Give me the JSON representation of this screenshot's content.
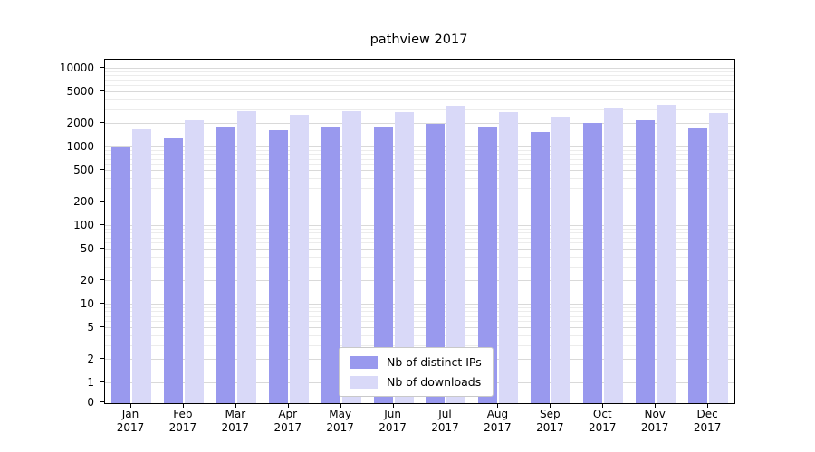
{
  "chart_data": {
    "type": "bar",
    "title": "pathview 2017",
    "categories": [
      "Jan",
      "Feb",
      "Mar",
      "Apr",
      "May",
      "Jun",
      "Jul",
      "Aug",
      "Sep",
      "Oct",
      "Nov",
      "Dec"
    ],
    "year_label": "2017",
    "series": [
      {
        "name": "Nb of distinct IPs",
        "color": "#9999ee",
        "values": [
          1000,
          1300,
          1850,
          1650,
          1850,
          1800,
          2000,
          1800,
          1550,
          2050,
          2200,
          1750
        ]
      },
      {
        "name": "Nb of downloads",
        "color": "#d9d9f8",
        "values": [
          1700,
          2200,
          2900,
          2600,
          2900,
          2800,
          3400,
          2800,
          2450,
          3200,
          3500,
          2750
        ]
      }
    ],
    "y_ticks": [
      0,
      1,
      2,
      5,
      10,
      20,
      50,
      100,
      200,
      500,
      1000,
      2000,
      5000,
      10000
    ],
    "y_scale": "symlog",
    "grid": true,
    "legend_position": "lower center",
    "major_grid_color": "#d9d9d9",
    "minor_grid_color": "#ececec",
    "axis_color": "#000000",
    "background": "#ffffff"
  }
}
